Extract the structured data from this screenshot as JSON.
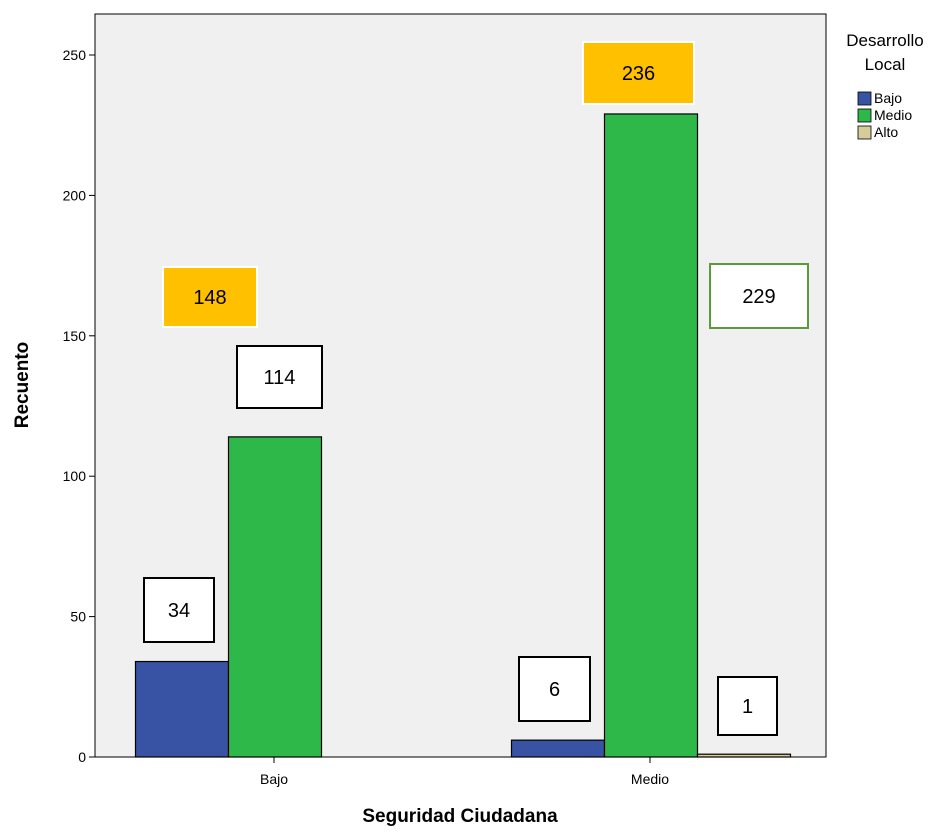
{
  "chart_data": {
    "type": "bar",
    "categories": [
      "Bajo",
      "Medio"
    ],
    "series": [
      {
        "name": "Bajo",
        "values": [
          34,
          6
        ],
        "color": "#3953a4"
      },
      {
        "name": "Medio",
        "values": [
          114,
          229
        ],
        "color": "#2eb84a"
      },
      {
        "name": "Alto",
        "values": [
          0,
          1
        ],
        "color": "#d6cc9b"
      }
    ],
    "xlabel": "Seguridad Ciudadana",
    "ylabel": "Recuento",
    "ylim": [
      0,
      270
    ],
    "yticks": [
      0,
      50,
      100,
      150,
      200,
      250
    ],
    "legend": {
      "title_lines": [
        "Desarrollo",
        "Local"
      ],
      "position": "right"
    },
    "plot_background": "#f0f0f0",
    "callouts": [
      {
        "label": "148",
        "style": "highlight",
        "note_for": "total-bajo"
      },
      {
        "label": "236",
        "style": "highlight",
        "note_for": "total-medio"
      },
      {
        "label": "114",
        "style": "box"
      },
      {
        "label": "229",
        "style": "box-green"
      },
      {
        "label": "34",
        "style": "box"
      },
      {
        "label": "6",
        "style": "box"
      },
      {
        "label": "1",
        "style": "box"
      }
    ],
    "highlight_color": "#ffc000"
  }
}
